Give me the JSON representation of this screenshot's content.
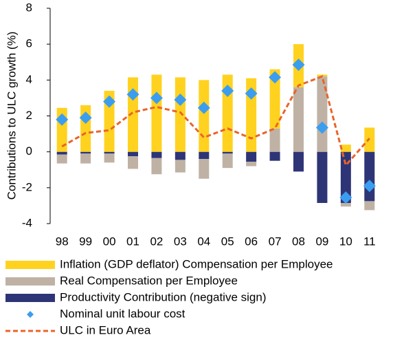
{
  "chart_data": {
    "type": "bar",
    "y_label": "Contributions to ULC growth (%)",
    "categories": [
      "98",
      "99",
      "00",
      "01",
      "02",
      "03",
      "04",
      "05",
      "06",
      "07",
      "08",
      "09",
      "10",
      "11"
    ],
    "series": [
      {
        "name": "Inflation (GDP deflator) Compensation per Employee",
        "type": "bar",
        "color": "#ffd21f",
        "values": [
          2.45,
          2.6,
          3.4,
          4.15,
          4.3,
          4.15,
          4.0,
          4.3,
          4.1,
          3.3,
          2.4,
          0.1,
          0.4,
          1.35
        ]
      },
      {
        "name": "Real Compensation per Employee",
        "type": "bar",
        "color": "#bfb2a5",
        "values": [
          -0.5,
          -0.55,
          -0.5,
          -0.7,
          -0.9,
          -0.7,
          -1.1,
          -0.8,
          -0.25,
          1.3,
          3.6,
          4.2,
          -0.2,
          -0.5
        ]
      },
      {
        "name": "Productivity Contribution (negative sign)",
        "type": "bar",
        "color": "#2e3576",
        "values": [
          -0.15,
          -0.1,
          -0.1,
          -0.25,
          -0.35,
          -0.45,
          -0.4,
          -0.1,
          -0.55,
          -0.5,
          -1.1,
          -2.85,
          -2.85,
          -2.75
        ]
      },
      {
        "name": "Nominal unit labour cost",
        "type": "scatter",
        "color": "#3b9df0",
        "values": [
          1.8,
          1.9,
          2.8,
          3.2,
          3.0,
          2.9,
          2.45,
          3.4,
          3.25,
          4.15,
          4.85,
          1.35,
          -2.55,
          -1.9
        ]
      },
      {
        "name": "ULC in Euro Area",
        "type": "line",
        "color": "#e8642a",
        "values": [
          0.3,
          1.05,
          1.2,
          2.2,
          2.5,
          2.2,
          0.8,
          1.3,
          0.75,
          1.3,
          3.7,
          4.2,
          -0.75,
          0.75
        ]
      }
    ],
    "ylim": [
      -4,
      8
    ],
    "yticks": [
      -4,
      -2,
      0,
      2,
      4,
      6,
      8
    ]
  }
}
